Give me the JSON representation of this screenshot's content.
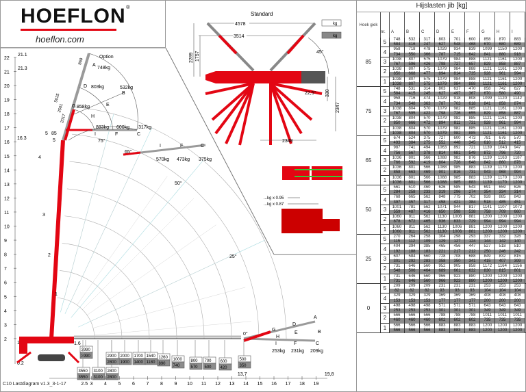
{
  "logo": {
    "brand": "HOEFLON",
    "reg": "®",
    "url": "hoeflon.com"
  },
  "footer": "C10 Lastdiagram v1.3_3-1-17",
  "top_view": {
    "title": "Standard",
    "dim_4578": "4578",
    "dim_3514": "3514",
    "dim_2289": "2289",
    "dim_1757": "1757",
    "angle_45": "45°",
    "angle_22": "22,5°",
    "dim_330": "330",
    "dim_2347": "2347",
    "dim_2348": "2348",
    "kg1": "kg",
    "kg2": "kg"
  },
  "counterweight": {
    "factor1": "...kg x 0.95",
    "factor2": "...kg x 0.87"
  },
  "y_axis": {
    "ticks": [
      "22",
      "21",
      "20",
      "19",
      "18",
      "17",
      "16",
      "15",
      "14",
      "13",
      "12",
      "11",
      "10",
      "9",
      "8",
      "7",
      "6",
      "5",
      "4",
      "3",
      "2"
    ],
    "extra": [
      "21.1",
      "21.3",
      "16.3",
      "1,7",
      "0.2"
    ]
  },
  "x_axis": {
    "ticks": [
      "2.5",
      "3",
      "4",
      "5",
      "6",
      "7",
      "8",
      "9",
      "10",
      "11",
      "12",
      "13",
      "14",
      "15",
      "16",
      "17",
      "18",
      "19"
    ],
    "extra": [
      "13,7",
      "19,8"
    ]
  },
  "boom_sections": [
    "1",
    "2",
    "3",
    "4",
    "5"
  ],
  "jib85": {
    "option": "Option",
    "A": "A",
    "A_kg": "748kg",
    "D": "D",
    "D_kg": "803kg",
    "G": "G",
    "G_kg": "858kg",
    "B": "B",
    "B_kg": "532kg",
    "E": "E",
    "H": "H",
    "I": "I",
    "I_kg": "883kg",
    "F": "F",
    "F_kg": "600kg",
    "C": "C",
    "C_kg": "317kg",
    "angle": "85",
    "dim_868": "868",
    "dim_5025": "5025",
    "dim_3501": "3501",
    "dim_2017": "2017",
    "sec": "5",
    "angle75": "75°"
  },
  "jib65": {
    "angle": "65°",
    "I": "I",
    "I_kg": "570kg",
    "F": "F",
    "F_kg": "473kg",
    "C": "C",
    "C_kg": "375kg"
  },
  "angle50": "50°",
  "angle25": "25°",
  "jib0": {
    "angle": "0°",
    "A": "A",
    "D": "D",
    "G": "G",
    "B": "B",
    "E": "E",
    "H": "H",
    "I": "I",
    "I_kg": "253kg",
    "F": "F",
    "F_kg": "231kg",
    "C": "C",
    "C_kg": "209kg"
  },
  "main_loads": [
    {
      "r": "1.6",
      "up": "3990",
      "lo": "3990"
    },
    {
      "r": "2.5",
      "up": "3550",
      "lo": "3550"
    },
    {
      "r": "3",
      "up": "3100",
      "lo": "3100"
    },
    {
      "r": "3.5",
      "up": "2800",
      "lo": "2800"
    },
    {
      "r": "4",
      "up": "2900",
      "lo": "2800"
    },
    {
      "r": "5",
      "up": "2000",
      "lo": "1900"
    },
    {
      "r": "6",
      "up": "1700",
      "lo": "1400"
    },
    {
      "r": "7",
      "up": "1540",
      "lo": "1180"
    },
    {
      "r": "8",
      "up": "1260",
      "lo": "890"
    },
    {
      "r": "9",
      "up": "1000",
      "lo": "740"
    },
    {
      "r": "10",
      "up": "800",
      "lo": "570"
    },
    {
      "r": "11",
      "up": "700",
      "lo": "500"
    },
    {
      "r": "12",
      "up": "600",
      "lo": "420"
    },
    {
      "r": "13",
      "up": "500",
      "lo": "350"
    }
  ],
  "colors": {
    "crane_red": "#e30613",
    "boom_gray": "#9a9a9a",
    "grid_cyan": "#a9dbe0",
    "lower_row": "#8c8c8c"
  },
  "table": {
    "title": "Hijslasten jib [kg]",
    "hoek_label": "Hoek giek",
    "nr_label": "nr.",
    "columns": [
      "A",
      "B",
      "C",
      "D",
      "E",
      "F",
      "G",
      "H",
      "I"
    ],
    "groups": [
      {
        "hoek": "85",
        "rows": [
          {
            "nr": "5",
            "up": [
              748,
              532,
              317,
              803,
              701,
              600,
              858,
              870,
              883
            ],
            "lo": [
              584,
              416,
              247,
              627,
              548,
              468,
              670,
              680,
              689
            ]
          },
          {
            "nr": "4",
            "up": [
              958,
              718,
              478,
              1029,
              934,
              839,
              1099,
              1150,
              1200
            ],
            "lo": [
              734,
              550,
              366,
              787,
              715,
              642,
              841,
              880,
              918
            ]
          },
          {
            "nr": "3",
            "up": [
              1038,
              807,
              575,
              1079,
              984,
              888,
              1121,
              1161,
              1200
            ],
            "lo": [
              767,
              596,
              426,
              798,
              727,
              657,
              829,
              858,
              887
            ]
          },
          {
            "nr": "2",
            "up": [
              1038,
              807,
              575,
              1079,
              984,
              888,
              1121,
              1161,
              1200
            ],
            "lo": [
              850,
              668,
              477,
              894,
              814,
              735,
              928,
              961,
              994
            ]
          },
          {
            "nr": "1",
            "up": [
              1038,
              807,
              575,
              1079,
              984,
              888,
              1121,
              1161,
              1200
            ],
            "lo": [
              1038,
              807,
              575,
              1079,
              984,
              888,
              1121,
              1161,
              1200
            ]
          }
        ]
      },
      {
        "hoek": "75",
        "rows": [
          {
            "nr": "5",
            "up": [
              748,
              531,
              314,
              803,
              637,
              470,
              858,
              742,
              627
            ],
            "lo": [
              584,
              415,
              245,
              627,
              497,
              367,
              670,
              580,
              490
            ]
          },
          {
            "nr": "4",
            "up": [
              958,
              716,
              474,
              1029,
              918,
              808,
              1099,
              1120,
              1142
            ],
            "lo": [
              734,
              548,
              363,
              787,
              703,
              618,
              841,
              858,
              874
            ]
          },
          {
            "nr": "3",
            "up": [
              1038,
              804,
              570,
              1079,
              982,
              885,
              1121,
              1161,
              1200
            ],
            "lo": [
              767,
              595,
              422,
              798,
              726,
              655,
              829,
              858,
              887
            ]
          },
          {
            "nr": "2",
            "up": [
              1038,
              804,
              570,
              1079,
              982,
              885,
              1121,
              1161,
              1200
            ],
            "lo": [
              850,
              666,
              472,
              894,
              811,
              731,
              928,
              961,
              994
            ]
          },
          {
            "nr": "1",
            "up": [
              1038,
              804,
              570,
              1079,
              982,
              885,
              1121,
              1161,
              1200
            ],
            "lo": [
              1038,
              804,
              570,
              1079,
              982,
              885,
              1121,
              1161,
              1200
            ]
          }
        ]
      },
      {
        "hoek": "65",
        "rows": [
          {
            "nr": "5",
            "up": [
              674,
              524,
              375,
              727,
              600,
              473,
              781,
              676,
              570
            ],
            "lo": [
              493,
              384,
              275,
              552,
              448,
              345,
              610,
              512,
              415
            ]
          },
          {
            "nr": "4",
            "up": [
              987,
              741,
              494,
              1063,
              892,
              721,
              1139,
              1043,
              947
            ],
            "lo": [
              756,
              567,
              378,
              814,
              681,
              549,
              872,
              796,
              720
            ]
          },
          {
            "nr": "3",
            "up": [
              1036,
              801,
              566,
              1088,
              982,
              876,
              1139,
              1163,
              1187
            ],
            "lo": [
              766,
              592,
              419,
              804,
              726,
              648,
              842,
              860,
              878
            ]
          },
          {
            "nr": "2",
            "up": [
              1036,
              801,
              566,
              1088,
              985,
              883,
              1139,
              1170,
              1200
            ],
            "lo": [
              858,
              663,
              469,
              901,
              816,
              731,
              943,
              968,
              994
            ]
          },
          {
            "nr": "1",
            "up": [
              1036,
              801,
              566,
              1088,
              985,
              883,
              1139,
              1170,
              1200
            ],
            "lo": [
              1036,
              801,
              566,
              1088,
              985,
              883,
              1139,
              1170,
              1200
            ]
          }
        ]
      },
      {
        "hoek": "50",
        "rows": [
          {
            "nr": "5",
            "up": [
              561,
              510,
              460,
              626,
              585,
              543,
              691,
              659,
              626
            ],
            "lo": [
              284,
              258,
              233,
              319,
              296,
              274,
              354,
              334,
              314
            ]
          },
          {
            "nr": "4",
            "up": [
              768,
              665,
              562,
              848,
              775,
              702,
              928,
              885,
              843
            ],
            "lo": [
              397,
              357,
              317,
              458,
              421,
              384,
              518,
              485,
              451
            ]
          },
          {
            "nr": "3",
            "up": [
              1001,
              781,
              562,
              1071,
              944,
              817,
              1141,
              1107,
              1072
            ],
            "lo": [
              559,
              487,
              416,
              650,
              598,
              538,
              758,
              709,
              660
            ]
          },
          {
            "nr": "2",
            "up": [
              1060,
              811,
              562,
              1130,
              1006,
              881,
              1200,
              1200,
              1200
            ],
            "lo": [
              878,
              672,
              465,
              936,
              833,
              729,
              994,
              994,
              994
            ]
          },
          {
            "nr": "1",
            "up": [
              1060,
              811,
              562,
              1130,
              1006,
              881,
              1200,
              1200,
              1200
            ],
            "lo": [
              1060,
              811,
              562,
              1130,
              1006,
              881,
              1200,
              1200,
              1200
            ]
          }
        ]
      },
      {
        "hoek": "25",
        "rows": [
          {
            "nr": "5",
            "up": [
              270,
              264,
              258,
              304,
              298,
              293,
              337,
              332,
              328
            ],
            "lo": [
              115,
              112,
              109,
              129,
              127,
              124,
              144,
              142,
              140
            ]
          },
          {
            "nr": "4",
            "up": [
              404,
              394,
              385,
              465,
              456,
              447,
              527,
              518,
              510
            ],
            "lo": [
              192,
              188,
              183,
              221,
              217,
              212,
              250,
              246,
              242
            ]
          },
          {
            "nr": "3",
            "up": [
              607,
              584,
              560,
              728,
              708,
              688,
              849,
              832,
              815
            ],
            "lo": [
              301,
              292,
              283,
              358,
              350,
              341,
              415,
              407,
              399
            ]
          },
          {
            "nr": "2",
            "up": [
              731,
              646,
              560,
              952,
              905,
              858,
              1172,
              1164,
              1156
            ],
            "lo": [
              548,
              506,
              464,
              689,
              661,
              632,
              830,
              815,
              801
            ]
          },
          {
            "nr": "1",
            "up": [
              731,
              646,
              560,
              966,
              923,
              880,
              1200,
              1200,
              1200
            ],
            "lo": [
              731,
              646,
              560,
              966,
              923,
              880,
              1200,
              1200,
              1200
            ]
          }
        ]
      },
      {
        "hoek": "0",
        "rows": [
          {
            "nr": "5",
            "up": [
              209,
              209,
              209,
              231,
              231,
              231,
              253,
              253,
              253
            ],
            "lo": [
              82,
              82,
              82,
              93,
              93,
              93,
              104,
              104,
              104
            ]
          },
          {
            "nr": "4",
            "up": [
              329,
              329,
              329,
              369,
              369,
              369,
              408,
              408,
              408
            ],
            "lo": [
              153,
              153,
              153,
              177,
              177,
              177,
              200,
              200,
              200
            ]
          },
          {
            "nr": "3",
            "up": [
              498,
              498,
              498,
              571,
              571,
              571,
              643,
              643,
              643
            ],
            "lo": [
              253,
              253,
              253,
              301,
              301,
              301,
              349,
              349,
              349
            ]
          },
          {
            "nr": "2",
            "up": [
              566,
              566,
              566,
              788,
              788,
              788,
              1011,
              1011,
              1011
            ],
            "lo": [
              460,
              460,
              460,
              602,
              602,
              602,
              735,
              735,
              735
            ]
          },
          {
            "nr": "1",
            "up": [
              566,
              566,
              566,
              883,
              883,
              883,
              1200,
              1200,
              1200
            ],
            "lo": [
              566,
              566,
              566,
              883,
              883,
              883,
              1200,
              1200,
              1200
            ]
          }
        ]
      }
    ]
  }
}
